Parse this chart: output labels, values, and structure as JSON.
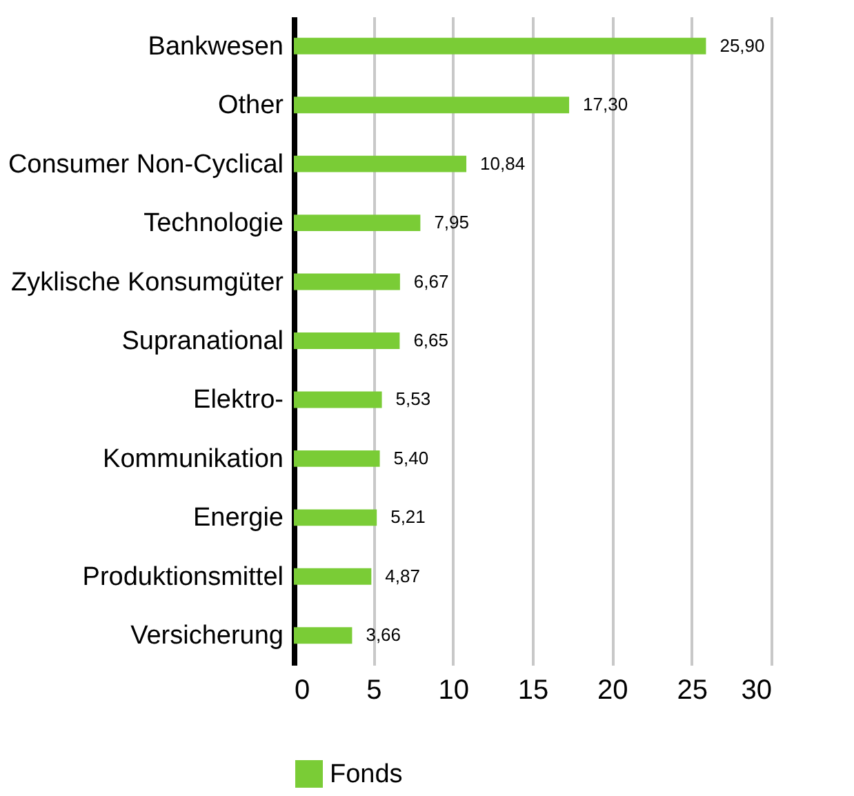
{
  "chart_data": {
    "type": "bar",
    "orientation": "horizontal",
    "categories": [
      "Bankwesen",
      "Other",
      "Consumer Non-Cyclical",
      "Technologie",
      "Zyklische Konsumgüter",
      "Supranational",
      "Elektro-",
      "Kommunikation",
      "Energie",
      "Produktionsmittel",
      "Versicherung"
    ],
    "series": [
      {
        "name": "Fonds",
        "color": "#7acc36",
        "values": [
          25.9,
          17.3,
          10.84,
          7.95,
          6.67,
          6.65,
          5.53,
          5.4,
          5.21,
          4.87,
          3.66
        ],
        "value_labels": [
          "25,90",
          "17,30",
          "10,84",
          "7,95",
          "6,67",
          "6,65",
          "5,53",
          "5,40",
          "5,21",
          "4,87",
          "3,66"
        ]
      }
    ],
    "xlim": [
      0,
      30
    ],
    "xticks": [
      0,
      5,
      10,
      15,
      20,
      25,
      30
    ],
    "grid": "x",
    "legend": "bottom"
  }
}
